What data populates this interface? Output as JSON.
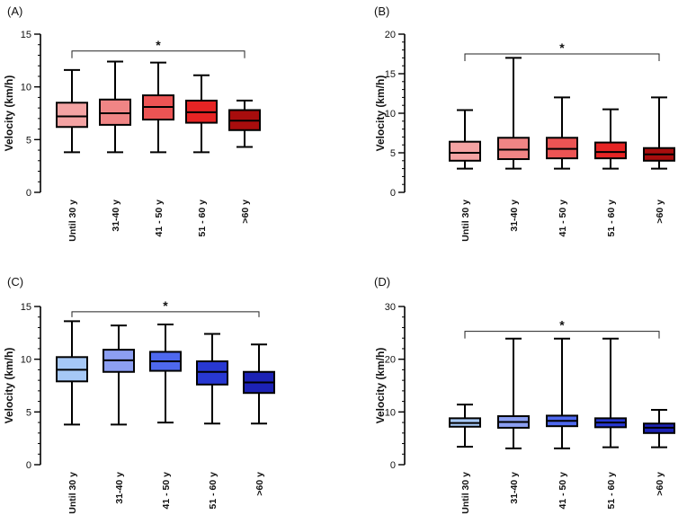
{
  "figure": {
    "panels": [
      "A",
      "B",
      "C",
      "D"
    ]
  },
  "chart_data": [
    {
      "type": "boxplot",
      "panel_label": "(A)",
      "ylabel": "Velocity (km/h)",
      "ylim": [
        0,
        15
      ],
      "yticks": [
        0,
        5,
        10,
        15
      ],
      "categories": [
        "Until 30 y",
        "31-40 y",
        "41 - 50 y",
        "51 - 60 y",
        ">60 y"
      ],
      "boxes": [
        {
          "min": 3.8,
          "q1": 6.2,
          "median": 7.2,
          "q3": 8.5,
          "max": 11.6
        },
        {
          "min": 3.8,
          "q1": 6.4,
          "median": 7.5,
          "q3": 8.8,
          "max": 12.4
        },
        {
          "min": 3.8,
          "q1": 6.9,
          "median": 8.1,
          "q3": 9.2,
          "max": 12.3
        },
        {
          "min": 3.8,
          "q1": 6.6,
          "median": 7.6,
          "q3": 8.7,
          "max": 11.1
        },
        {
          "min": 4.3,
          "q1": 5.9,
          "median": 6.8,
          "q3": 7.8,
          "max": 8.7
        }
      ],
      "colors": [
        "#f4a3a3",
        "#f08585",
        "#ec5454",
        "#e62424",
        "#a80d0d"
      ],
      "significance": {
        "label": "*",
        "from": 0,
        "to": 4,
        "y": 13.4
      }
    },
    {
      "type": "boxplot",
      "panel_label": "(B)",
      "ylabel": "Velocity (km/h)",
      "ylim": [
        0,
        20
      ],
      "yticks": [
        0,
        5,
        10,
        15,
        20
      ],
      "categories": [
        "Until 30 y",
        "31-40 y",
        "41 - 50 y",
        "51 - 60 y",
        ">60 y"
      ],
      "boxes": [
        {
          "min": 3.0,
          "q1": 4.0,
          "median": 5.0,
          "q3": 6.4,
          "max": 10.4
        },
        {
          "min": 3.0,
          "q1": 4.2,
          "median": 5.4,
          "q3": 6.9,
          "max": 17.0
        },
        {
          "min": 3.0,
          "q1": 4.3,
          "median": 5.5,
          "q3": 6.9,
          "max": 12.0
        },
        {
          "min": 3.0,
          "q1": 4.3,
          "median": 5.1,
          "q3": 6.3,
          "max": 10.5
        },
        {
          "min": 3.0,
          "q1": 4.0,
          "median": 4.8,
          "q3": 5.6,
          "max": 12.0
        }
      ],
      "colors": [
        "#f4a3a3",
        "#f08585",
        "#ec5454",
        "#e62424",
        "#a80d0d"
      ],
      "significance": {
        "label": "*",
        "from": 0,
        "to": 4,
        "y": 17.5
      }
    },
    {
      "type": "boxplot",
      "panel_label": "(C)",
      "ylabel": "Velocity (km/h)",
      "ylim": [
        0,
        15
      ],
      "yticks": [
        0,
        5,
        10,
        15
      ],
      "categories": [
        "Until 30 y",
        "31-40 y",
        "41 - 50 y",
        "51 - 60 y",
        ">60 y"
      ],
      "boxes": [
        {
          "min": 3.8,
          "q1": 7.9,
          "median": 9.0,
          "q3": 10.2,
          "max": 13.6
        },
        {
          "min": 3.8,
          "q1": 8.8,
          "median": 9.9,
          "q3": 10.9,
          "max": 13.2
        },
        {
          "min": 4.0,
          "q1": 8.9,
          "median": 9.8,
          "q3": 10.7,
          "max": 13.3
        },
        {
          "min": 3.9,
          "q1": 7.6,
          "median": 8.8,
          "q3": 9.8,
          "max": 12.4
        },
        {
          "min": 3.9,
          "q1": 6.8,
          "median": 7.8,
          "q3": 8.8,
          "max": 11.4
        }
      ],
      "colors": [
        "#a6c8f6",
        "#8c9ff2",
        "#4e68ee",
        "#2838d2",
        "#1c22b5"
      ],
      "significance": {
        "label": "*",
        "from": 0,
        "to": 4,
        "y": 14.5
      }
    },
    {
      "type": "boxplot",
      "panel_label": "(D)",
      "ylabel": "Velocity (km/h)",
      "ylim": [
        0,
        30
      ],
      "yticks": [
        0,
        10,
        20,
        30
      ],
      "categories": [
        "Until 30 y",
        "31-40 y",
        "41 - 50 y",
        "51 - 60 y",
        ">60 y"
      ],
      "boxes": [
        {
          "min": 3.4,
          "q1": 7.2,
          "median": 7.9,
          "q3": 8.8,
          "max": 11.4
        },
        {
          "min": 3.1,
          "q1": 7.0,
          "median": 8.1,
          "q3": 9.2,
          "max": 23.9
        },
        {
          "min": 3.1,
          "q1": 7.3,
          "median": 8.3,
          "q3": 9.3,
          "max": 23.9
        },
        {
          "min": 3.3,
          "q1": 7.1,
          "median": 8.0,
          "q3": 8.8,
          "max": 23.9
        },
        {
          "min": 3.3,
          "q1": 6.0,
          "median": 7.0,
          "q3": 7.8,
          "max": 10.4
        }
      ],
      "colors": [
        "#a6c8f6",
        "#8c9ff2",
        "#4e68ee",
        "#2838d2",
        "#1c22b5"
      ],
      "significance": {
        "label": "*",
        "from": 0,
        "to": 4,
        "y": 25.3
      }
    }
  ]
}
